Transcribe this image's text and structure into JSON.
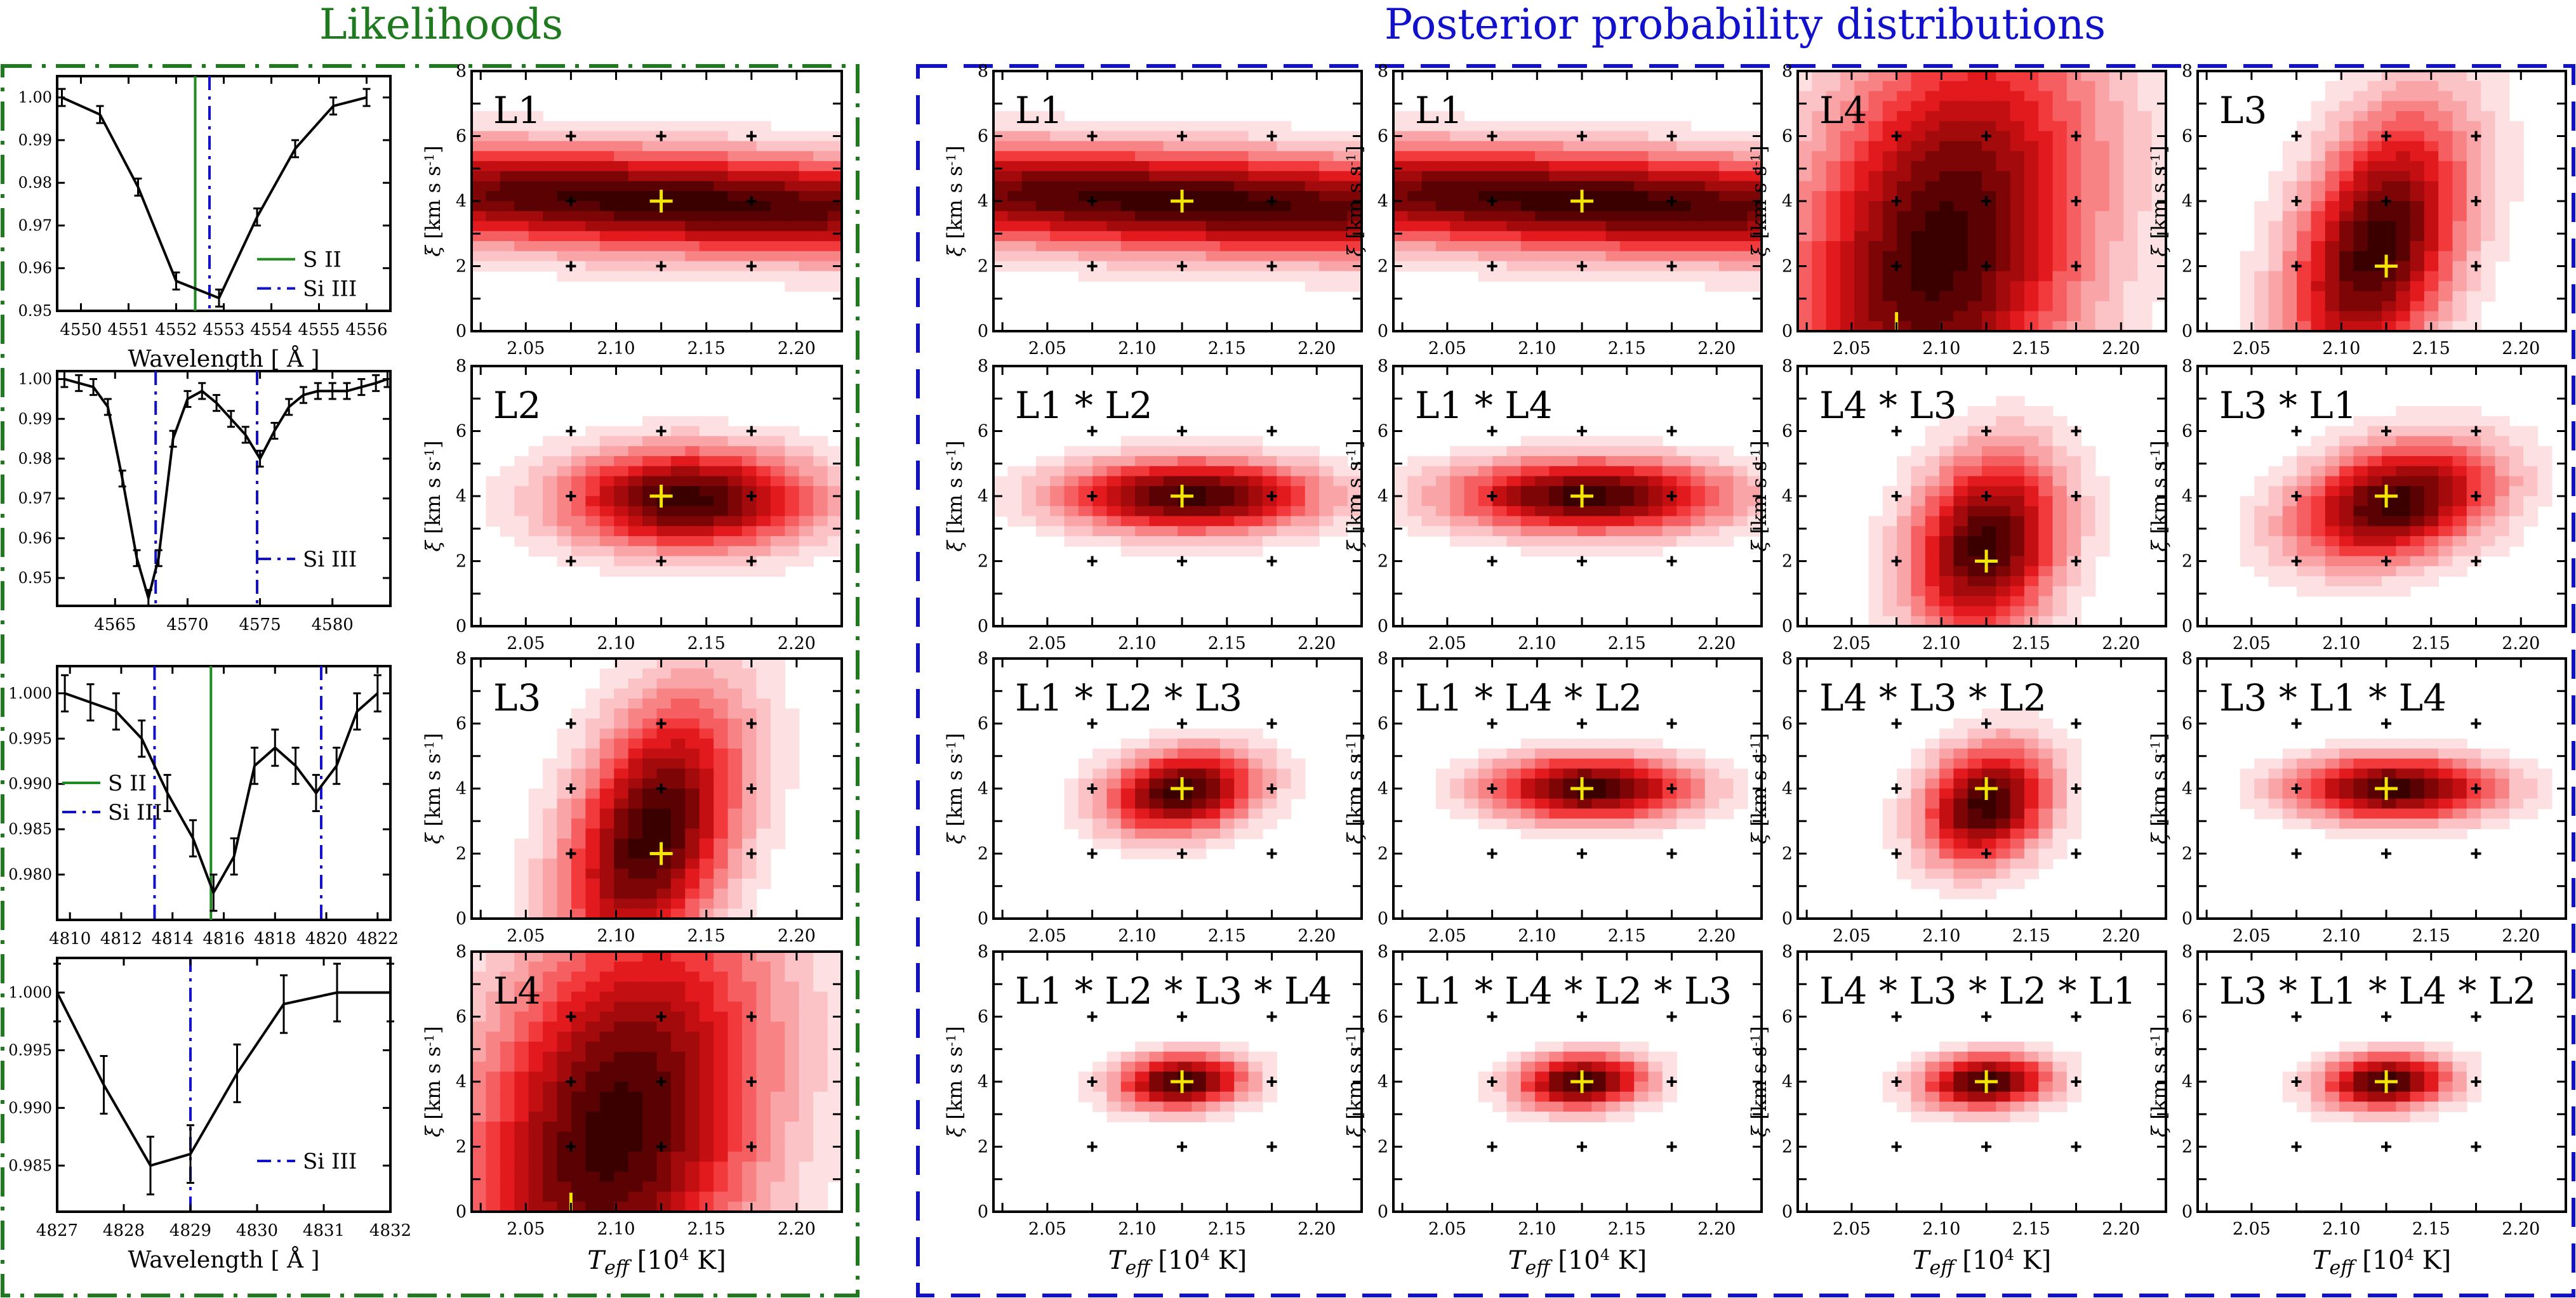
{
  "headers": {
    "likelihoods": "Likelihoods",
    "posteriors": "Posterior probability distributions"
  },
  "colors": {
    "likelihood_frame": "#1f7a1f",
    "posterior_frame": "#1111cc",
    "si_iii_line": "#1111cc",
    "s_ii_line": "#1f8a1f",
    "best_fit_marker": "#f2e600"
  },
  "labels": {
    "wavelength_axis": "Wavelength [ Å ]",
    "xi_axis": "ξ",
    "xi_unit": "[km s",
    "xi_unit_sup": "-1",
    "teff_axis": "T",
    "teff_sub": "eff",
    "teff_unit": "[10",
    "teff_unit_sup": "4",
    "teff_unit_end": " K]"
  },
  "chart_data": [
    {
      "type": "line",
      "id": "spectrum-4552",
      "xlabel": "Wavelength [ Å ]",
      "xlim": [
        4549.5,
        4556.5
      ],
      "ylim": [
        0.95,
        1.005
      ],
      "xticks": [
        "4550",
        "4551",
        "4552",
        "4553",
        "4554",
        "4555",
        "4556"
      ],
      "yticks": [
        "0.95",
        "0.96",
        "0.97",
        "0.98",
        "0.99",
        "1.00"
      ],
      "x": [
        4549.6,
        4550.4,
        4551.2,
        4552.0,
        4552.9,
        4553.7,
        4554.5,
        4555.3,
        4556.0
      ],
      "y": [
        1.0,
        0.996,
        0.979,
        0.957,
        0.953,
        0.972,
        0.988,
        0.998,
        1.0
      ],
      "yerr": [
        0.002,
        0.002,
        0.002,
        0.002,
        0.002,
        0.002,
        0.002,
        0.002,
        0.002
      ],
      "vlines": [
        {
          "x": 4552.4,
          "kind": "S II"
        },
        {
          "x": 4552.7,
          "kind": "Si III"
        }
      ],
      "legend": [
        "S II",
        "Si III"
      ]
    },
    {
      "type": "line",
      "id": "spectrum-4568",
      "xlabel": "",
      "xlim": [
        4561,
        4584
      ],
      "ylim": [
        0.943,
        1.002
      ],
      "xticks": [
        "4565",
        "4570",
        "4575",
        "4580"
      ],
      "yticks": [
        "0.95",
        "0.96",
        "0.97",
        "0.98",
        "0.99",
        "1.00"
      ],
      "x": [
        4561.5,
        4562.5,
        4563.5,
        4564.5,
        4565.5,
        4566.5,
        4567.3,
        4568.0,
        4569.0,
        4570.0,
        4571.0,
        4572.0,
        4573.0,
        4574.0,
        4575.0,
        4576.0,
        4577.0,
        4578.0,
        4579.0,
        4580.0,
        4581.0,
        4582.0,
        4583.0,
        4583.8
      ],
      "y": [
        1.0,
        0.999,
        0.998,
        0.993,
        0.975,
        0.955,
        0.945,
        0.955,
        0.985,
        0.995,
        0.997,
        0.994,
        0.99,
        0.986,
        0.98,
        0.987,
        0.993,
        0.996,
        0.997,
        0.997,
        0.997,
        0.998,
        0.999,
        1.0
      ],
      "yerr": [
        0.002,
        0.002,
        0.002,
        0.002,
        0.002,
        0.002,
        0.002,
        0.002,
        0.002,
        0.002,
        0.002,
        0.002,
        0.002,
        0.002,
        0.002,
        0.002,
        0.002,
        0.002,
        0.002,
        0.002,
        0.002,
        0.002,
        0.002,
        0.002
      ],
      "vlines": [
        {
          "x": 4567.8,
          "kind": "Si III"
        },
        {
          "x": 4574.8,
          "kind": "Si III"
        }
      ],
      "legend": [
        "Si III"
      ]
    },
    {
      "type": "line",
      "id": "spectrum-4813",
      "xlabel": "",
      "xlim": [
        4809.5,
        4822.5
      ],
      "ylim": [
        0.975,
        1.003
      ],
      "xticks": [
        "4810",
        "4812",
        "4814",
        "4816",
        "4818",
        "4820",
        "4822"
      ],
      "yticks": [
        "0.980",
        "0.985",
        "0.990",
        "0.995",
        "1.000"
      ],
      "x": [
        4809.8,
        4810.8,
        4811.8,
        4812.8,
        4813.8,
        4814.8,
        4815.6,
        4816.4,
        4817.2,
        4818.0,
        4818.8,
        4819.6,
        4820.4,
        4821.2,
        4822.0
      ],
      "y": [
        1.0,
        0.999,
        0.998,
        0.995,
        0.989,
        0.984,
        0.978,
        0.982,
        0.992,
        0.994,
        0.992,
        0.989,
        0.992,
        0.998,
        1.0
      ],
      "yerr": [
        0.002,
        0.002,
        0.002,
        0.002,
        0.002,
        0.002,
        0.002,
        0.002,
        0.002,
        0.002,
        0.002,
        0.002,
        0.002,
        0.002,
        0.002
      ],
      "vlines": [
        {
          "x": 4813.3,
          "kind": "Si III"
        },
        {
          "x": 4815.5,
          "kind": "S II"
        },
        {
          "x": 4819.8,
          "kind": "Si III"
        }
      ],
      "legend": [
        "S II",
        "Si III"
      ]
    },
    {
      "type": "line",
      "id": "spectrum-4829",
      "xlabel": "Wavelength [ Å ]",
      "xlim": [
        4827,
        4832
      ],
      "ylim": [
        0.981,
        1.003
      ],
      "xticks": [
        "4827",
        "4828",
        "4829",
        "4830",
        "4831",
        "4832"
      ],
      "yticks": [
        "0.985",
        "0.990",
        "0.995",
        "1.000"
      ],
      "x": [
        4827.0,
        4827.7,
        4828.4,
        4829.0,
        4829.7,
        4830.4,
        4831.2,
        4832.0
      ],
      "y": [
        1.0,
        0.992,
        0.985,
        0.986,
        0.993,
        0.999,
        1.0,
        1.0
      ],
      "yerr": [
        0.0025,
        0.0025,
        0.0025,
        0.0025,
        0.0025,
        0.0025,
        0.0025,
        0.0025
      ],
      "vlines": [
        {
          "x": 4829.0,
          "kind": "Si III"
        }
      ],
      "legend": [
        "Si III"
      ]
    },
    {
      "type": "heatmap",
      "id": "likelihood-grid",
      "xlabel": "Teff [10^4 K]",
      "ylabel": "ξ [km s^-1]",
      "xlim": [
        2.02,
        2.225
      ],
      "ylim": [
        0,
        8
      ],
      "xticks": [
        "2.05",
        "2.10",
        "2.15",
        "2.20"
      ],
      "yticks": [
        "0",
        "2",
        "4",
        "6",
        "8"
      ],
      "grid_points_x": [
        2.075,
        2.125,
        2.175
      ],
      "grid_points_y": [
        2,
        4,
        6
      ],
      "panels": [
        {
          "label": "L1",
          "peak": [
            2.125,
            4.0
          ],
          "sx": 0.2,
          "sy": 1.1,
          "rho": 0,
          "slope": -0.25,
          "best": [
            2.125,
            4
          ],
          "tick": null
        },
        {
          "label": "L2",
          "peak": [
            2.14,
            3.9
          ],
          "sx": 0.05,
          "sy": 1.1,
          "rho": 0,
          "slope": 0,
          "best": [
            2.125,
            4
          ],
          "tick": null
        },
        {
          "label": "L3",
          "peak": [
            2.12,
            2.6
          ],
          "sx": 0.035,
          "sy": 3.0,
          "rho": 0.4,
          "slope": 0,
          "best": [
            2.125,
            2
          ],
          "tick": null
        },
        {
          "label": "L4",
          "peak": [
            2.1,
            2.5
          ],
          "sx": 0.06,
          "sy": 5.0,
          "rho": 0.3,
          "slope": 0,
          "best": null,
          "tick": 2.075
        }
      ]
    },
    {
      "type": "heatmap",
      "id": "posterior-grid",
      "xlabel": "Teff [10^4 K]",
      "ylabel": "ξ [km s^-1]",
      "xlim": [
        2.02,
        2.225
      ],
      "ylim": [
        0,
        8
      ],
      "xticks": [
        "2.05",
        "2.10",
        "2.15",
        "2.20"
      ],
      "yticks": [
        "0",
        "2",
        "4",
        "6",
        "8"
      ],
      "grid_points_x": [
        2.075,
        2.125,
        2.175
      ],
      "grid_points_y": [
        2,
        4,
        6
      ],
      "rows": [
        [
          {
            "label": "L1",
            "peak": [
              2.125,
              4.0
            ],
            "sx": 0.2,
            "sy": 1.1,
            "rho": 0,
            "slope": -0.25,
            "best": [
              2.125,
              4
            ],
            "tick": null
          },
          {
            "label": "L1",
            "peak": [
              2.125,
              4.0
            ],
            "sx": 0.2,
            "sy": 1.1,
            "rho": 0,
            "slope": -0.25,
            "best": [
              2.125,
              4
            ],
            "tick": null
          },
          {
            "label": "L4",
            "peak": [
              2.1,
              2.5
            ],
            "sx": 0.06,
            "sy": 5.0,
            "rho": 0.3,
            "slope": 0,
            "best": null,
            "tick": 2.075
          },
          {
            "label": "L3",
            "peak": [
              2.12,
              2.6
            ],
            "sx": 0.035,
            "sy": 3.0,
            "rho": 0.4,
            "slope": 0,
            "best": [
              2.125,
              2
            ],
            "tick": null
          }
        ],
        [
          {
            "label": "L1 * L2",
            "peak": [
              2.13,
              4.0
            ],
            "sx": 0.05,
            "sy": 0.8,
            "rho": 0,
            "slope": 0,
            "best": [
              2.125,
              4
            ],
            "tick": null
          },
          {
            "label": "L1 * L4",
            "peak": [
              2.13,
              4.0
            ],
            "sx": 0.055,
            "sy": 0.8,
            "rho": 0,
            "slope": 0,
            "best": [
              2.125,
              4
            ],
            "tick": null
          },
          {
            "label": "L4 * L3",
            "peak": [
              2.125,
              2.5
            ],
            "sx": 0.03,
            "sy": 2.0,
            "rho": 0.2,
            "slope": 0,
            "best": [
              2.125,
              2
            ],
            "tick": null
          },
          {
            "label": "L3 * L1",
            "peak": [
              2.13,
              3.8
            ],
            "sx": 0.04,
            "sy": 1.3,
            "rho": 0.3,
            "slope": 0,
            "best": [
              2.125,
              4
            ],
            "tick": null
          }
        ],
        [
          {
            "label": "L1 * L2 * L3",
            "peak": [
              2.125,
              3.9
            ],
            "sx": 0.03,
            "sy": 0.9,
            "rho": 0.2,
            "slope": 0,
            "best": [
              2.125,
              4
            ],
            "tick": null
          },
          {
            "label": "L1 * L4 * L2",
            "peak": [
              2.13,
              4.0
            ],
            "sx": 0.04,
            "sy": 0.7,
            "rho": 0,
            "slope": 0,
            "best": [
              2.125,
              4
            ],
            "tick": null
          },
          {
            "label": "L4 * L3 * L2",
            "peak": [
              2.125,
              3.5
            ],
            "sx": 0.025,
            "sy": 1.3,
            "rho": 0.2,
            "slope": 0,
            "best": [
              2.125,
              4
            ],
            "tick": null
          },
          {
            "label": "L3 * L1 * L4",
            "peak": [
              2.13,
              4.0
            ],
            "sx": 0.04,
            "sy": 0.7,
            "rho": 0,
            "slope": 0,
            "best": [
              2.125,
              4
            ],
            "tick": null
          }
        ],
        [
          {
            "label": "L1 * L2 * L3 * L4",
            "peak": [
              2.125,
              4.0
            ],
            "sx": 0.025,
            "sy": 0.6,
            "rho": 0.1,
            "slope": 0,
            "best": [
              2.125,
              4
            ],
            "tick": null
          },
          {
            "label": "L1 * L4 * L2 * L3",
            "peak": [
              2.125,
              4.0
            ],
            "sx": 0.025,
            "sy": 0.6,
            "rho": 0.1,
            "slope": 0,
            "best": [
              2.125,
              4
            ],
            "tick": null
          },
          {
            "label": "L4 * L3 * L2 * L1",
            "peak": [
              2.125,
              4.0
            ],
            "sx": 0.025,
            "sy": 0.6,
            "rho": 0.1,
            "slope": 0,
            "best": [
              2.125,
              4
            ],
            "tick": null
          },
          {
            "label": "L3 * L1 * L4 * L2",
            "peak": [
              2.125,
              4.0
            ],
            "sx": 0.025,
            "sy": 0.6,
            "rho": 0.1,
            "slope": 0,
            "best": [
              2.125,
              4
            ],
            "tick": null
          }
        ]
      ]
    }
  ]
}
